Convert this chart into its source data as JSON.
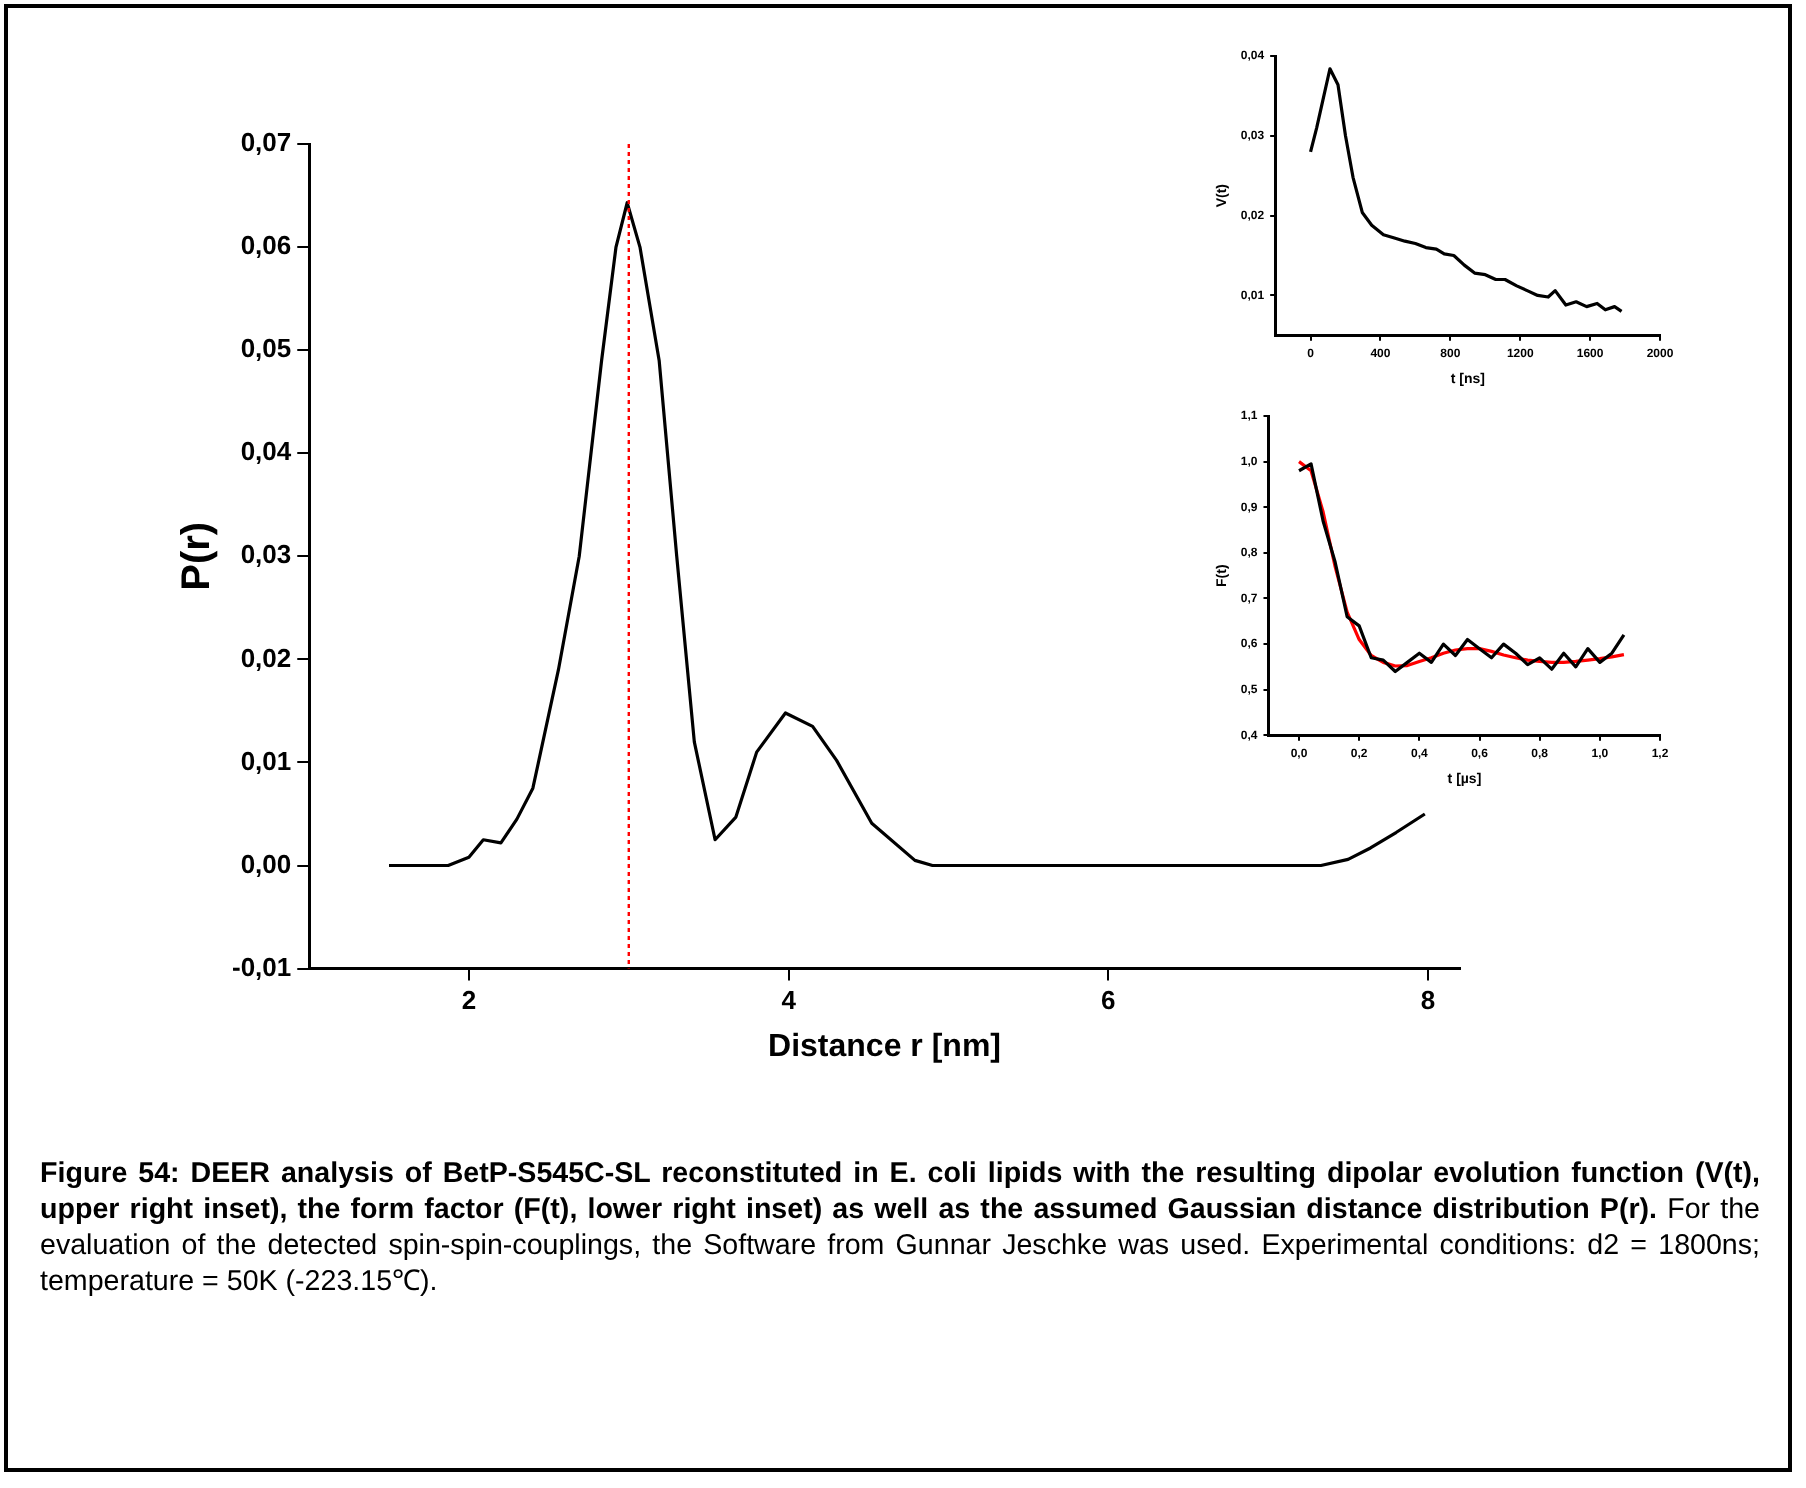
{
  "chart_data": [
    {
      "type": "line",
      "xlabel": "Distance r [nm]",
      "ylabel": "P(r)",
      "grid": false,
      "x": [
        1.5,
        1.87,
        2.0,
        2.09,
        2.2,
        2.3,
        2.4,
        2.56,
        2.69,
        2.83,
        2.92,
        2.99,
        3.07,
        3.19,
        3.3,
        3.41,
        3.54,
        3.67,
        3.8,
        3.98,
        4.15,
        4.3,
        4.52,
        4.79,
        4.9,
        7.33,
        7.5,
        7.64,
        7.8,
        7.98
      ],
      "series": [
        {
          "color": "#000000",
          "values": [
            0,
            0,
            0.0008,
            0.0025,
            0.0022,
            0.0045,
            0.0075,
            0.019,
            0.03,
            0.049,
            0.06,
            0.0643,
            0.06,
            0.049,
            0.03,
            0.012,
            0.0025,
            0.0047,
            0.011,
            0.0148,
            0.0135,
            0.0102,
            0.0041,
            0.0005,
            0,
            0,
            0.0006,
            0.0017,
            0.0032,
            0.005
          ]
        }
      ],
      "xlim": [
        1,
        8.2
      ],
      "ylim": [
        -0.01,
        0.07
      ],
      "xticks": [
        2,
        4,
        6,
        8
      ],
      "yticks": [
        {
          "value": -0.01,
          "label": "-0,01"
        },
        {
          "value": 0,
          "label": "0,00"
        },
        {
          "value": 0.01,
          "label": "0,01"
        },
        {
          "value": 0.02,
          "label": "0,02"
        },
        {
          "value": 0.03,
          "label": "0,03"
        },
        {
          "value": 0.04,
          "label": "0,04"
        },
        {
          "value": 0.05,
          "label": "0,05"
        },
        {
          "value": 0.06,
          "label": "0,06"
        },
        {
          "value": 0.07,
          "label": "0,07"
        }
      ],
      "ref_lines": [
        {
          "axis": "x",
          "value": 3,
          "color": "#ff0000",
          "line_style": "dotted"
        }
      ],
      "annotations": [
        "Figure 54: DEER analysis of BetP-S545C-SL reconstituted in E. coli lipids with the resulting dipolar evolution function (V(t), upper right inset), the form factor (F(t), lower right inset) as well as the assumed Gaussian distance distribution P(r).",
        "For the evaluation of the detected spin-spin-couplings, the Software from Gunnar Jeschke was used. Experimental conditions: d2 = 1800ns; temperature = 50K (-223.15℃)."
      ]
    },
    {
      "type": "line",
      "xlabel": "t [ns]",
      "ylabel": "V(t)",
      "grid": false,
      "x": [
        0,
        35,
        70,
        111,
        157,
        200,
        243,
        296,
        350,
        417,
        480,
        540,
        600,
        660,
        720,
        765,
        820,
        880,
        939,
        1000,
        1060,
        1113,
        1180,
        1240,
        1300,
        1360,
        1400,
        1461,
        1520,
        1580,
        1640,
        1687,
        1740,
        1780
      ],
      "series": [
        {
          "color": "#000000",
          "values": [
            0.028,
            0.031,
            0.0344,
            0.0384,
            0.0364,
            0.03,
            0.0248,
            0.0204,
            0.0188,
            0.0176,
            0.0172,
            0.0168,
            0.0165,
            0.016,
            0.0158,
            0.0152,
            0.015,
            0.0138,
            0.0128,
            0.0126,
            0.012,
            0.012,
            0.0112,
            0.0106,
            0.01,
            0.0098,
            0.0106,
            0.0088,
            0.0092,
            0.0086,
            0.009,
            0.0082,
            0.0086,
            0.008
          ]
        }
      ],
      "xlim": [
        -200,
        2000
      ],
      "ylim": [
        0.005,
        0.04
      ],
      "xticks": [
        0,
        400,
        800,
        1200,
        1600,
        2000
      ],
      "yticks": [
        {
          "value": 0.01,
          "label": "0,01"
        },
        {
          "value": 0.02,
          "label": "0,02"
        },
        {
          "value": 0.03,
          "label": "0,03"
        },
        {
          "value": 0.04,
          "label": "0,04"
        }
      ]
    },
    {
      "type": "line",
      "xlabel": "t [µs]",
      "ylabel": "F(t)",
      "grid": false,
      "x": [
        0,
        0.04,
        0.08,
        0.12,
        0.16,
        0.2,
        0.24,
        0.28,
        0.32,
        0.36,
        0.4,
        0.44,
        0.48,
        0.52,
        0.56,
        0.6,
        0.64,
        0.68,
        0.72,
        0.76,
        0.8,
        0.84,
        0.88,
        0.92,
        0.96,
        1.0,
        1.04,
        1.08
      ],
      "series": [
        {
          "color": "#000000",
          "values": [
            0.98,
            0.995,
            0.87,
            0.78,
            0.66,
            0.64,
            0.57,
            0.565,
            0.54,
            0.56,
            0.58,
            0.56,
            0.6,
            0.575,
            0.61,
            0.59,
            0.57,
            0.6,
            0.58,
            0.555,
            0.57,
            0.545,
            0.58,
            0.55,
            0.59,
            0.56,
            0.58,
            0.62
          ]
        },
        {
          "color": "#ff0000",
          "values": [
            1.0,
            0.98,
            0.89,
            0.77,
            0.67,
            0.61,
            0.575,
            0.56,
            0.552,
            0.553,
            0.562,
            0.57,
            0.58,
            0.587,
            0.59,
            0.59,
            0.584,
            0.576,
            0.57,
            0.565,
            0.562,
            0.56,
            0.56,
            0.562,
            0.565,
            0.568,
            0.572,
            0.577
          ]
        }
      ],
      "xlim": [
        -0.1,
        1.2
      ],
      "ylim": [
        0.4,
        1.1
      ],
      "xticks": [
        {
          "value": 0,
          "label": "0,0"
        },
        {
          "value": 0.2,
          "label": "0,2"
        },
        {
          "value": 0.4,
          "label": "0,4"
        },
        {
          "value": 0.6,
          "label": "0,6"
        },
        {
          "value": 0.8,
          "label": "0,8"
        },
        {
          "value": 1.0,
          "label": "1,0"
        },
        {
          "value": 1.2,
          "label": "1,2"
        }
      ],
      "yticks": [
        {
          "value": 0.4,
          "label": "0,4"
        },
        {
          "value": 0.5,
          "label": "0,5"
        },
        {
          "value": 0.6,
          "label": "0,6"
        },
        {
          "value": 0.7,
          "label": "0,7"
        },
        {
          "value": 0.8,
          "label": "0,8"
        },
        {
          "value": 0.9,
          "label": "0,9"
        },
        {
          "value": 1.0,
          "label": "1,0"
        },
        {
          "value": 1.1,
          "label": "1,1"
        }
      ]
    }
  ]
}
